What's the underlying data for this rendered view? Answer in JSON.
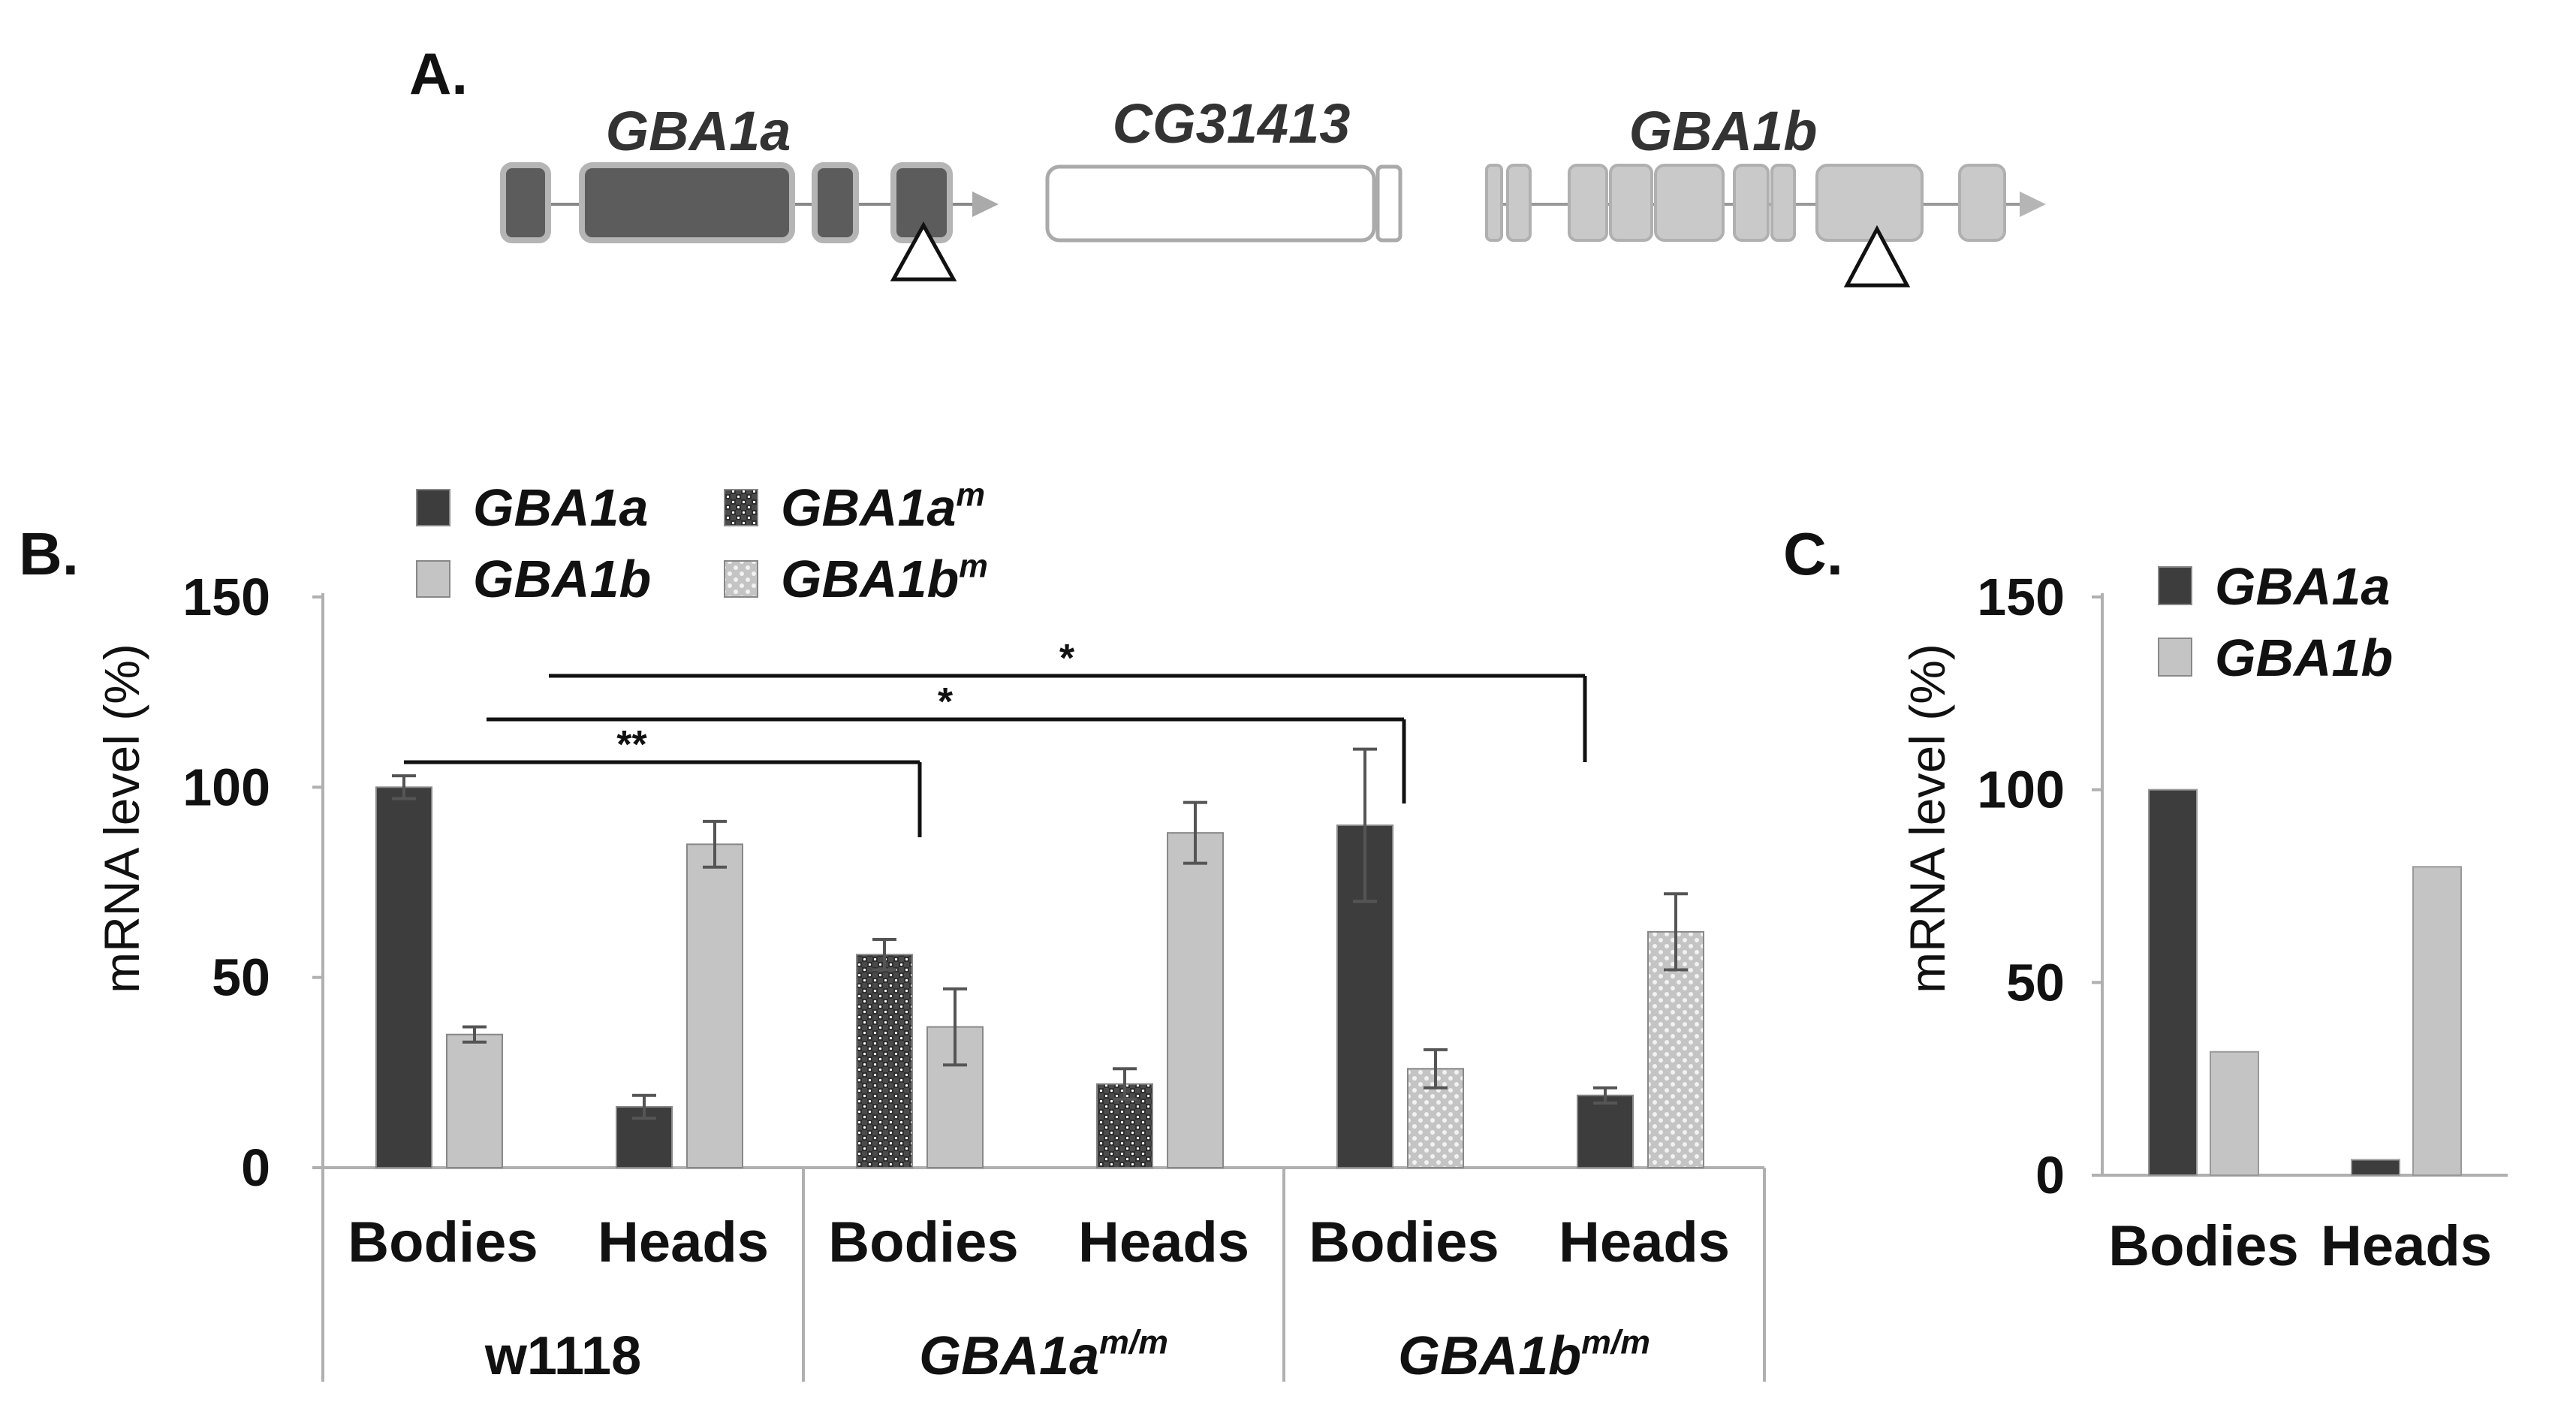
{
  "panel_a": {
    "label": "A.",
    "genes": [
      {
        "name": "GBA1a",
        "color": "#5c5c5c"
      },
      {
        "name": "CG31413",
        "color": "#ffffff"
      },
      {
        "name": "GBA1b",
        "color": "#c9c9c9"
      }
    ]
  },
  "colors": {
    "GBA1a": "#3d3d3d",
    "GBA1b": "#c4c4c4",
    "GBA1a_m": "#3d3d3d",
    "GBA1b_m": "#c4c4c4",
    "axis": "#b0b0b0",
    "error": "#555555"
  },
  "chart_data": [
    {
      "panel": "B.",
      "type": "bar",
      "ylabel": "mRNA level (%)",
      "ylim": [
        0,
        150
      ],
      "yticks": [
        0,
        50,
        100,
        150
      ],
      "legend": [
        {
          "name": "GBA1a",
          "sup": "",
          "pattern": "solid-dark"
        },
        {
          "name": "GBA1a",
          "sup": "m",
          "pattern": "checker-dark"
        },
        {
          "name": "GBA1b",
          "sup": "",
          "pattern": "solid-light"
        },
        {
          "name": "GBA1b",
          "sup": "m",
          "pattern": "dots-light"
        }
      ],
      "groups": [
        {
          "name": "w1118",
          "sup": "",
          "italic": false
        },
        {
          "name": "GBA1a",
          "sup": "m/m",
          "italic": true
        },
        {
          "name": "GBA1b",
          "sup": "m/m",
          "italic": true
        }
      ],
      "categories": [
        "Bodies",
        "Heads",
        "Bodies",
        "Heads",
        "Bodies",
        "Heads"
      ],
      "series": [
        {
          "name": "GBA1a",
          "values": [
            100,
            16,
            56,
            22,
            90,
            19
          ],
          "errors": [
            3,
            3,
            4,
            4,
            20,
            2
          ],
          "patterns": [
            "solid-dark",
            "solid-dark",
            "checker-dark",
            "checker-dark",
            "solid-dark",
            "solid-dark"
          ]
        },
        {
          "name": "GBA1b",
          "values": [
            35,
            85,
            37,
            88,
            26,
            62
          ],
          "errors": [
            2,
            6,
            10,
            8,
            5,
            10
          ],
          "patterns": [
            "solid-light",
            "solid-light",
            "solid-light",
            "solid-light",
            "dots-light",
            "dots-light"
          ]
        }
      ],
      "significance": [
        {
          "label": "**",
          "from": 0,
          "to": 2
        },
        {
          "label": "*",
          "from": 0,
          "to": 4
        },
        {
          "label": "*",
          "from": 1,
          "to": 5
        }
      ]
    },
    {
      "panel": "C.",
      "type": "bar",
      "ylabel": "mRNA level (%)",
      "ylim": [
        0,
        150
      ],
      "yticks": [
        0,
        50,
        100,
        150
      ],
      "legend": [
        {
          "name": "GBA1a",
          "sup": "",
          "pattern": "solid-dark"
        },
        {
          "name": "GBA1b",
          "sup": "",
          "pattern": "solid-light"
        }
      ],
      "categories": [
        "Bodies",
        "Heads"
      ],
      "series": [
        {
          "name": "GBA1a",
          "values": [
            100,
            4
          ]
        },
        {
          "name": "GBA1b",
          "values": [
            32,
            80
          ]
        }
      ]
    }
  ]
}
